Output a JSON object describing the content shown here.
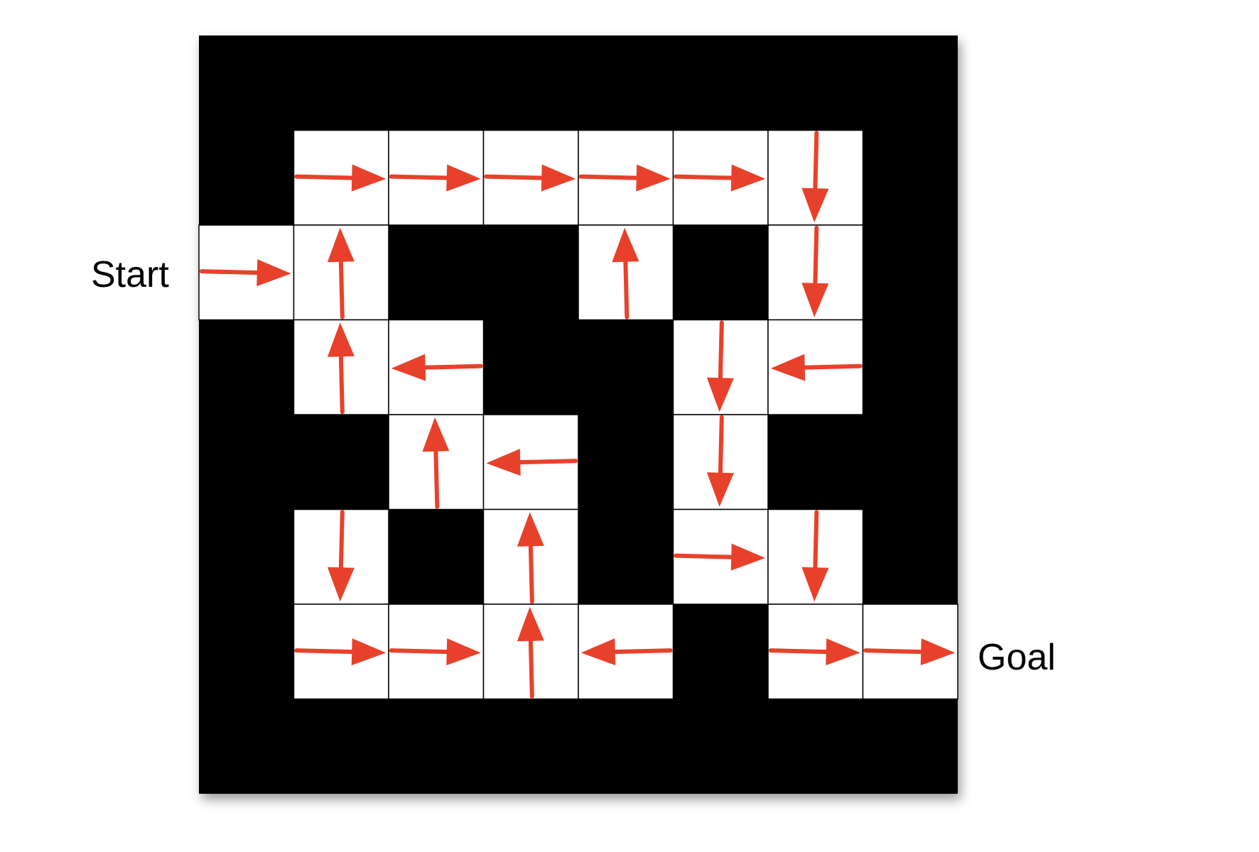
{
  "labels": {
    "start": "Start",
    "goal": "Goal"
  },
  "maze": {
    "rows": 8,
    "cols": 8,
    "open_cells": [
      [
        1,
        1
      ],
      [
        1,
        2
      ],
      [
        1,
        3
      ],
      [
        1,
        4
      ],
      [
        1,
        5
      ],
      [
        1,
        6
      ],
      [
        2,
        0
      ],
      [
        2,
        1
      ],
      [
        2,
        4
      ],
      [
        2,
        6
      ],
      [
        3,
        1
      ],
      [
        3,
        2
      ],
      [
        3,
        5
      ],
      [
        3,
        6
      ],
      [
        4,
        2
      ],
      [
        4,
        3
      ],
      [
        4,
        5
      ],
      [
        5,
        1
      ],
      [
        5,
        3
      ],
      [
        5,
        5
      ],
      [
        5,
        6
      ],
      [
        6,
        1
      ],
      [
        6,
        2
      ],
      [
        6,
        3
      ],
      [
        6,
        4
      ],
      [
        6,
        6
      ],
      [
        6,
        7
      ]
    ],
    "policy": [
      {
        "row": 1,
        "col": 1,
        "dir": "right"
      },
      {
        "row": 1,
        "col": 2,
        "dir": "right"
      },
      {
        "row": 1,
        "col": 3,
        "dir": "right"
      },
      {
        "row": 1,
        "col": 4,
        "dir": "right"
      },
      {
        "row": 1,
        "col": 5,
        "dir": "right"
      },
      {
        "row": 1,
        "col": 6,
        "dir": "down"
      },
      {
        "row": 2,
        "col": 0,
        "dir": "right"
      },
      {
        "row": 2,
        "col": 1,
        "dir": "up"
      },
      {
        "row": 2,
        "col": 4,
        "dir": "up"
      },
      {
        "row": 2,
        "col": 6,
        "dir": "down"
      },
      {
        "row": 3,
        "col": 1,
        "dir": "up"
      },
      {
        "row": 3,
        "col": 2,
        "dir": "left"
      },
      {
        "row": 3,
        "col": 5,
        "dir": "down"
      },
      {
        "row": 3,
        "col": 6,
        "dir": "left"
      },
      {
        "row": 4,
        "col": 2,
        "dir": "up"
      },
      {
        "row": 4,
        "col": 3,
        "dir": "left"
      },
      {
        "row": 4,
        "col": 5,
        "dir": "down"
      },
      {
        "row": 5,
        "col": 1,
        "dir": "down"
      },
      {
        "row": 5,
        "col": 3,
        "dir": "up"
      },
      {
        "row": 5,
        "col": 5,
        "dir": "right"
      },
      {
        "row": 5,
        "col": 6,
        "dir": "down"
      },
      {
        "row": 6,
        "col": 1,
        "dir": "right"
      },
      {
        "row": 6,
        "col": 2,
        "dir": "right"
      },
      {
        "row": 6,
        "col": 3,
        "dir": "up"
      },
      {
        "row": 6,
        "col": 4,
        "dir": "left"
      },
      {
        "row": 6,
        "col": 6,
        "dir": "right"
      },
      {
        "row": 6,
        "col": 7,
        "dir": "right"
      }
    ]
  },
  "colors": {
    "wall": "#000000",
    "open": "#ffffff",
    "grid_line": "#000000",
    "arrow": "#e8412b",
    "shadow": "#9a9a9a"
  }
}
